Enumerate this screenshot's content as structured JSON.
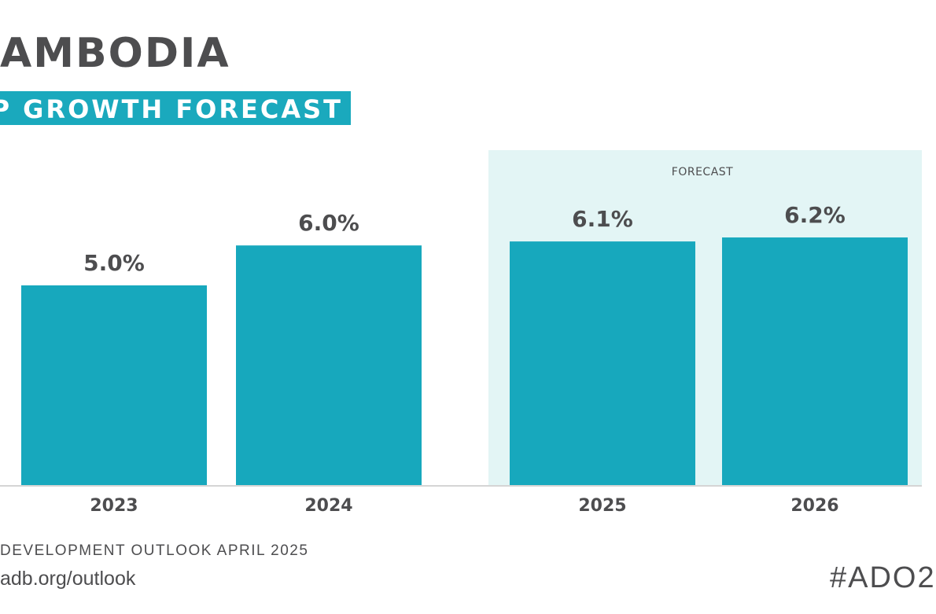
{
  "header": {
    "title": "AMBODIA",
    "subtitle": "P GROWTH FORECAST"
  },
  "chart_data": {
    "type": "bar",
    "categories": [
      "2023",
      "2024",
      "2025",
      "2026"
    ],
    "values": [
      5.0,
      6.0,
      6.1,
      6.2
    ],
    "value_labels": [
      "5.0%",
      "6.0%",
      "6.1%",
      "6.2%"
    ],
    "forecast_label": "FORECAST",
    "forecast_categories": [
      "2025",
      "2026"
    ],
    "ylim": [
      0,
      6.5
    ],
    "grid": false,
    "legend": "none",
    "xlabel": "",
    "ylabel": ""
  },
  "footer": {
    "source": "DEVELOPMENT OUTLOOK APRIL 2025",
    "url": "adb.org/outlook",
    "hashtag": "#ADO2"
  },
  "colors": {
    "bar": "#17a8bd",
    "forecast_band": "#e3f5f5",
    "baseline": "#d5d5d5",
    "text": "#4d4d4f",
    "subtitle_band": "#1aa9bd"
  }
}
